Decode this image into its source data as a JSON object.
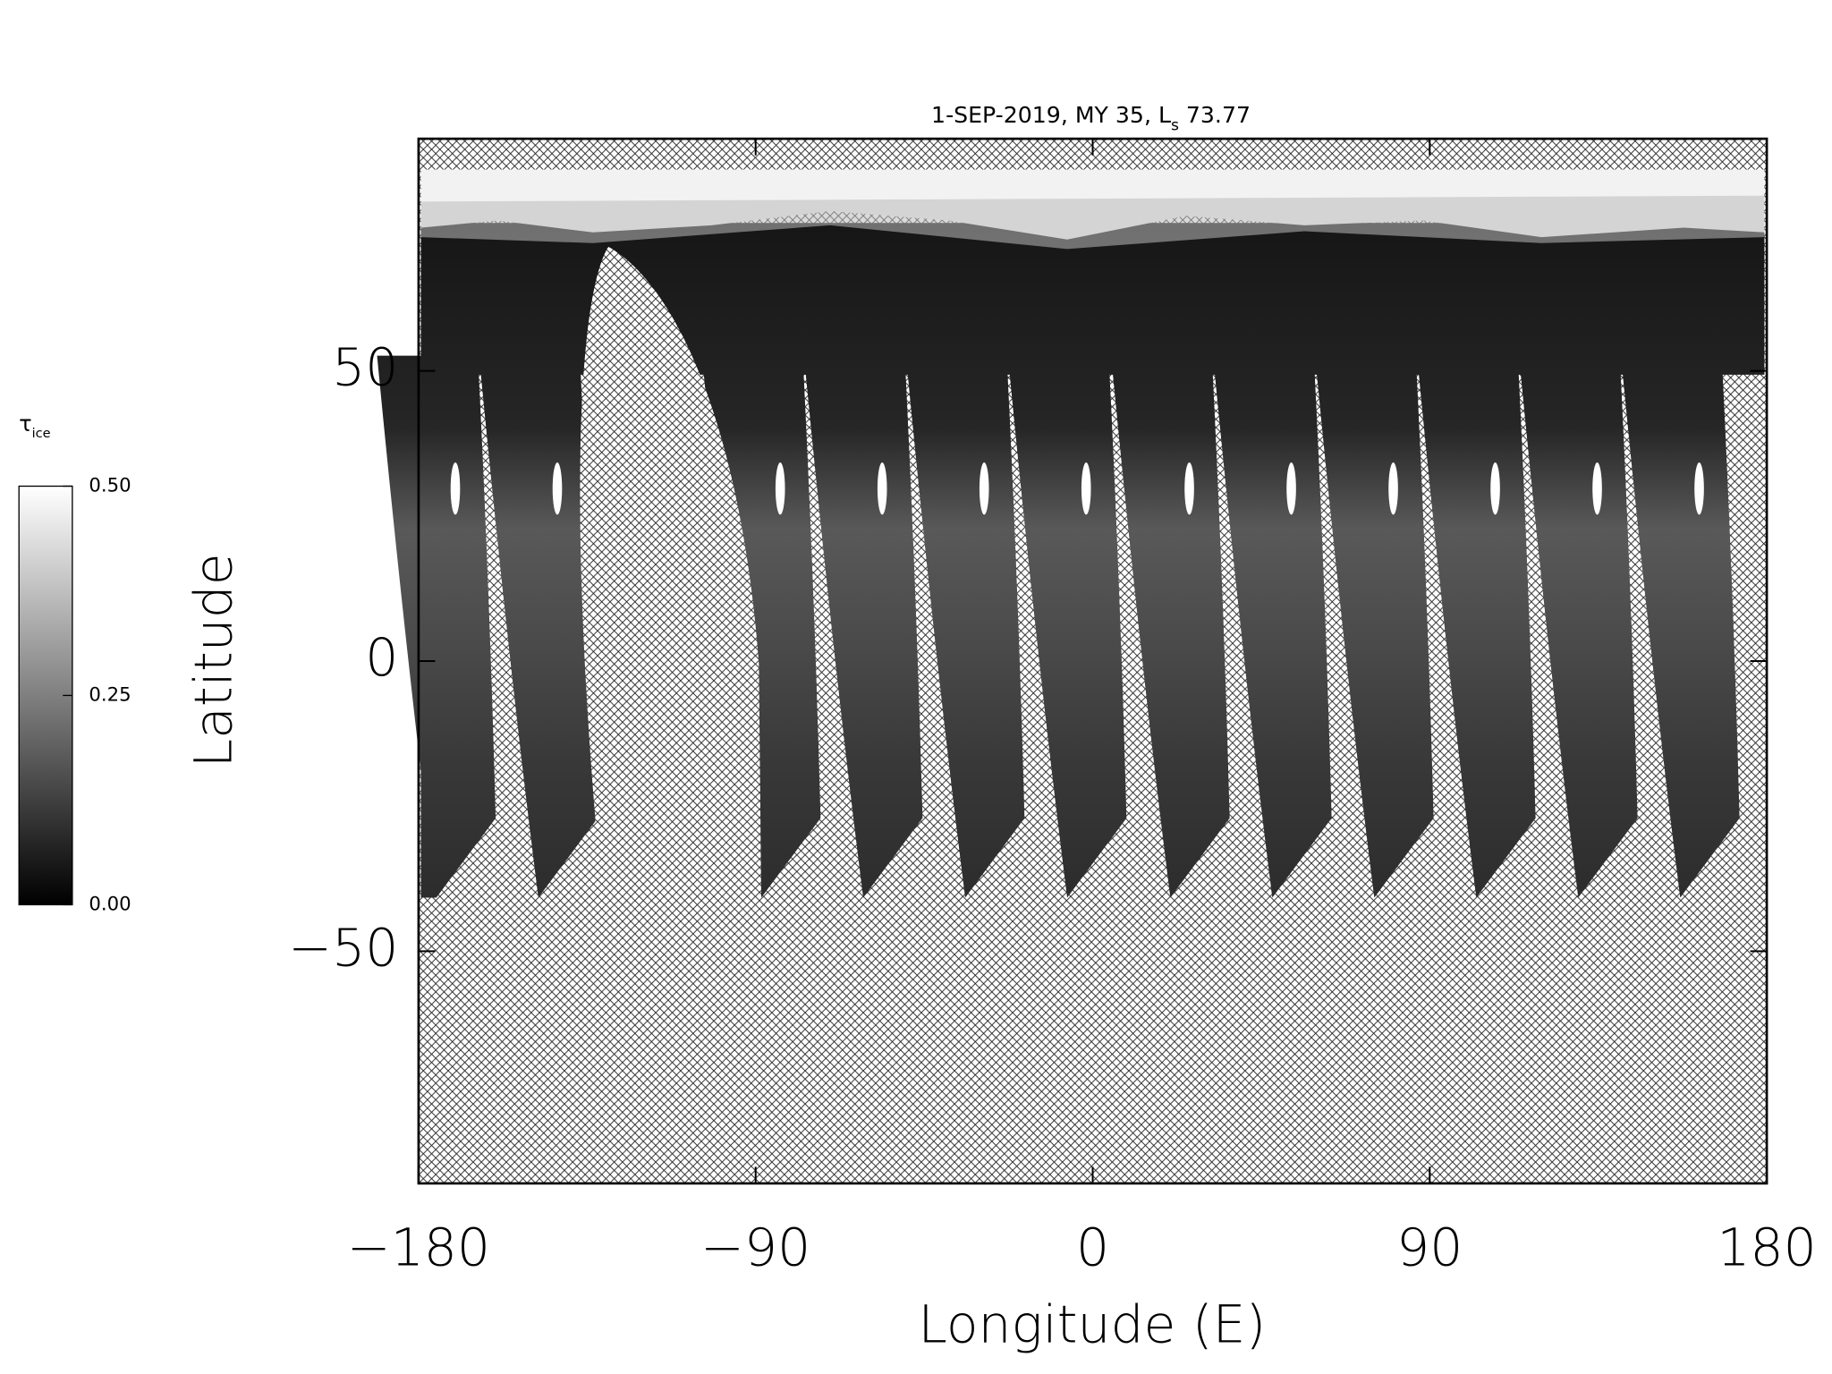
{
  "chart_data": {
    "type": "map",
    "title": "1-SEP-2019, MY 35,  L",
    "title_sub": "s",
    "title_end": "73.77",
    "x_label": "Longitude (E)",
    "y_label": "Latitude",
    "xlim": [
      -180,
      180
    ],
    "ylim": [
      -90,
      90
    ],
    "xticks": [
      {
        "value": -180,
        "label": "−180"
      },
      {
        "value": -90,
        "label": "−90"
      },
      0,
      90,
      180
    ],
    "yticks": [
      {
        "value": -50,
        "label": "−50"
      },
      0,
      50
    ],
    "grid": false,
    "colorbar": {
      "label": "τ",
      "label_sub": "ice",
      "clim": [
        0,
        0.5
      ],
      "ticks": [
        {
          "value": 0,
          "label": "0.00"
        },
        {
          "value": 0.25,
          "label": "0.25"
        },
        {
          "value": 0.5,
          "label": "0.50"
        }
      ]
    }
  }
}
